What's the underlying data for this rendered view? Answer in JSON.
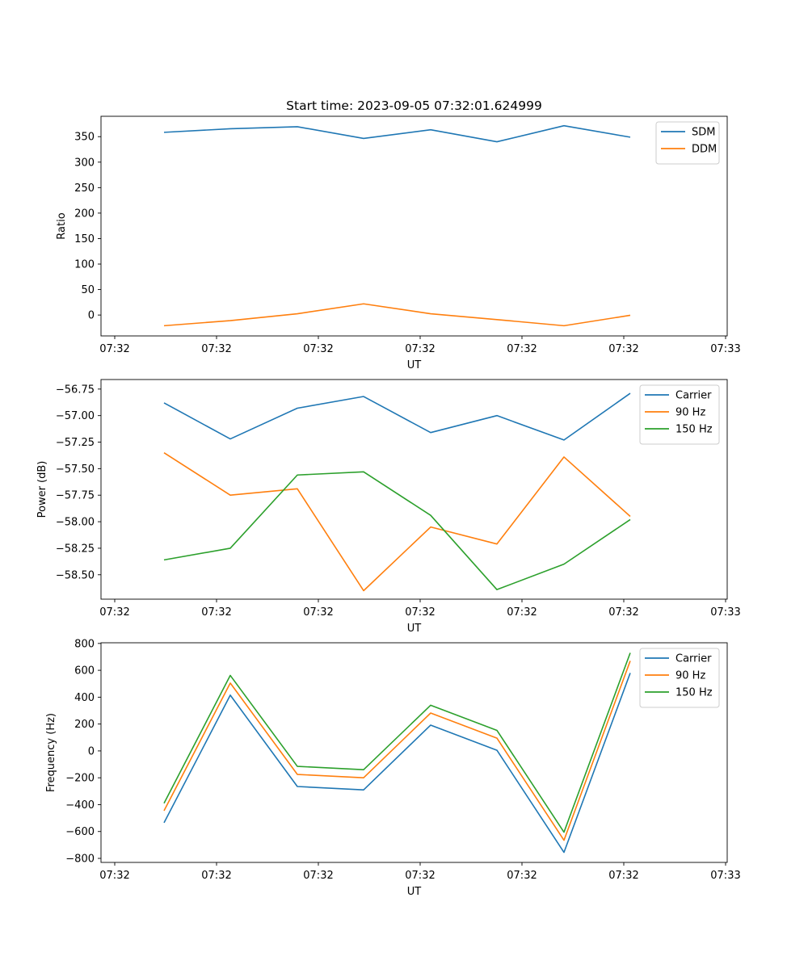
{
  "chart_data": [
    {
      "type": "line",
      "title": "Start time: 2023-09-05 07:32:01.624999",
      "xlabel": "UT",
      "ylabel": "Ratio",
      "x_tick_labels": [
        "07:32",
        "07:32",
        "07:32",
        "07:32",
        "07:32",
        "07:32",
        "07:33"
      ],
      "y_ticks": [
        0,
        50,
        100,
        150,
        200,
        250,
        300,
        350
      ],
      "ylim": [
        -41,
        390
      ],
      "legend_position": "upper-right",
      "series": [
        {
          "name": "SDM",
          "color": "#1f77b4",
          "values": [
            358.5,
            365.5,
            369.5,
            346.5,
            363.5,
            340,
            371.5,
            349
          ]
        },
        {
          "name": "DDM",
          "color": "#ff7f0e",
          "values": [
            -21,
            -11,
            2.5,
            22,
            2.5,
            -9,
            -21,
            -0.5
          ]
        }
      ]
    },
    {
      "type": "line",
      "title": "",
      "xlabel": "UT",
      "ylabel": "Power (dB)",
      "x_tick_labels": [
        "07:32",
        "07:32",
        "07:32",
        "07:32",
        "07:32",
        "07:32",
        "07:33"
      ],
      "y_ticks": [
        -58.5,
        -58.25,
        -58.0,
        -57.75,
        -57.5,
        -57.25,
        -57.0,
        -56.75
      ],
      "y_tick_labels": [
        "−58.50",
        "−58.25",
        "−58.00",
        "−57.75",
        "−57.50",
        "−57.25",
        "−57.00",
        "−56.75"
      ],
      "ylim": [
        -58.73,
        -56.66
      ],
      "legend_position": "upper-right",
      "series": [
        {
          "name": "Carrier",
          "color": "#1f77b4",
          "values": [
            -56.88,
            -57.22,
            -56.93,
            -56.82,
            -57.16,
            -57.0,
            -57.23,
            -56.79
          ]
        },
        {
          "name": "90 Hz",
          "color": "#ff7f0e",
          "values": [
            -57.35,
            -57.75,
            -57.69,
            -58.65,
            -58.05,
            -58.21,
            -57.39,
            -57.95
          ]
        },
        {
          "name": "150 Hz",
          "color": "#2ca02c",
          "values": [
            -58.36,
            -58.25,
            -57.56,
            -57.53,
            -57.94,
            -58.64,
            -58.4,
            -57.98
          ]
        }
      ]
    },
    {
      "type": "line",
      "title": "",
      "xlabel": "UT",
      "ylabel": "Frequency (Hz)",
      "x_tick_labels": [
        "07:32",
        "07:32",
        "07:32",
        "07:32",
        "07:32",
        "07:32",
        "07:33"
      ],
      "y_ticks": [
        -800,
        -600,
        -400,
        -200,
        0,
        200,
        400,
        600,
        800
      ],
      "y_tick_labels": [
        "−800",
        "−600",
        "−400",
        "−200",
        "0",
        "200",
        "400",
        "600",
        "800"
      ],
      "ylim": [
        -830,
        805
      ],
      "legend_position": "upper-right",
      "series": [
        {
          "name": "Carrier",
          "color": "#1f77b4",
          "values": [
            -535,
            415,
            -265,
            -290,
            192,
            5,
            -755,
            580
          ]
        },
        {
          "name": "90 Hz",
          "color": "#ff7f0e",
          "values": [
            -445,
            505,
            -175,
            -200,
            282,
            95,
            -665,
            670
          ]
        },
        {
          "name": "150 Hz",
          "color": "#2ca02c",
          "values": [
            -390,
            562,
            -115,
            -140,
            340,
            153,
            -605,
            730
          ]
        }
      ]
    }
  ]
}
